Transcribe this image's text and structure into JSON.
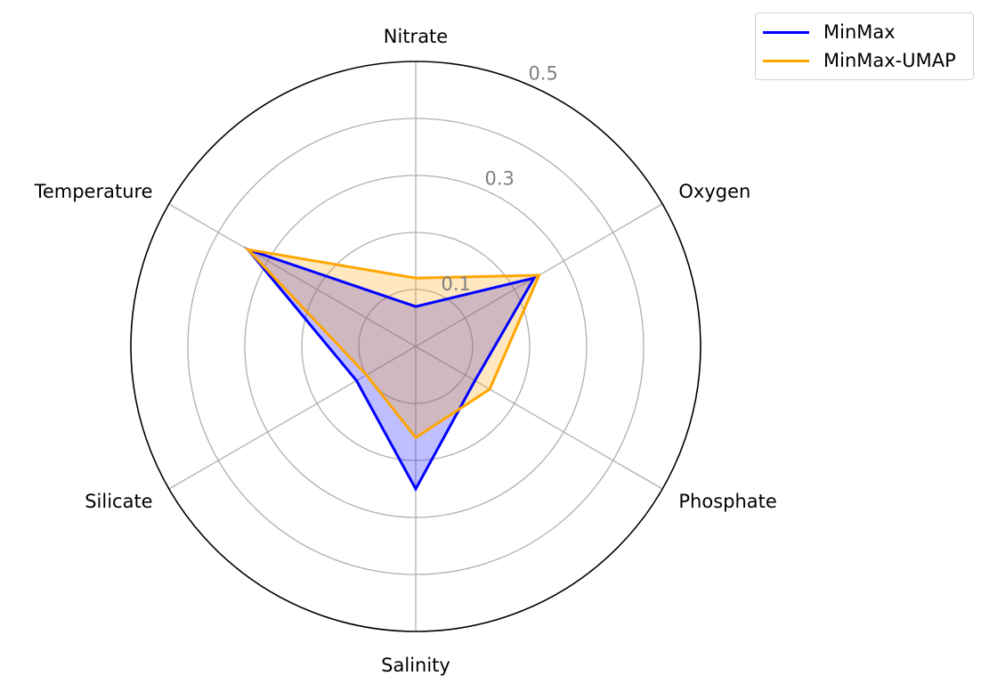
{
  "chart_data": {
    "type": "radar",
    "axes": [
      "Nitrate",
      "Oxygen",
      "Phosphate",
      "Salinity",
      "Silicate",
      "Temperature"
    ],
    "radial_ticks": [
      "0.1",
      "0.3",
      "0.5"
    ],
    "radial_tick_values": [
      0.1,
      0.3,
      0.5
    ],
    "rlim": [
      0,
      0.5
    ],
    "grid": true,
    "legend_position": "top-right",
    "series": [
      {
        "name": "MinMax",
        "color": "#0000ff",
        "values": [
          0.07,
          0.24,
          0.12,
          0.25,
          0.12,
          0.34
        ]
      },
      {
        "name": "MinMax-UMAP",
        "color": "#ffa500",
        "values": [
          0.12,
          0.25,
          0.15,
          0.16,
          0.1,
          0.34
        ]
      }
    ]
  }
}
